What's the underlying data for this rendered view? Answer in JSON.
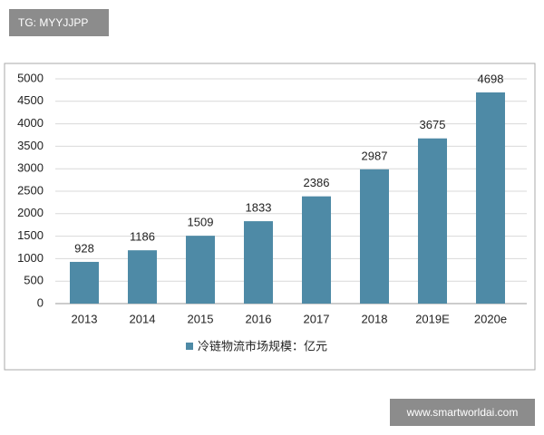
{
  "watermark_top": "TG: MYYJJPP",
  "watermark_bottom": "www.smartworldai.com",
  "chart_data": {
    "type": "bar",
    "categories": [
      "2013",
      "2014",
      "2015",
      "2016",
      "2017",
      "2018",
      "2019E",
      "2020e"
    ],
    "series": [
      {
        "name": "冷链物流市场规模：亿元",
        "color": "#4e8aa6",
        "values": [
          928,
          1186,
          1509,
          1833,
          2386,
          2987,
          3675,
          4698
        ]
      }
    ],
    "ylim": [
      0,
      5000
    ],
    "yticks": [
      0,
      500,
      1000,
      1500,
      2000,
      2500,
      3000,
      3500,
      4000,
      4500,
      5000
    ],
    "grid": true,
    "legend": "bottom"
  }
}
